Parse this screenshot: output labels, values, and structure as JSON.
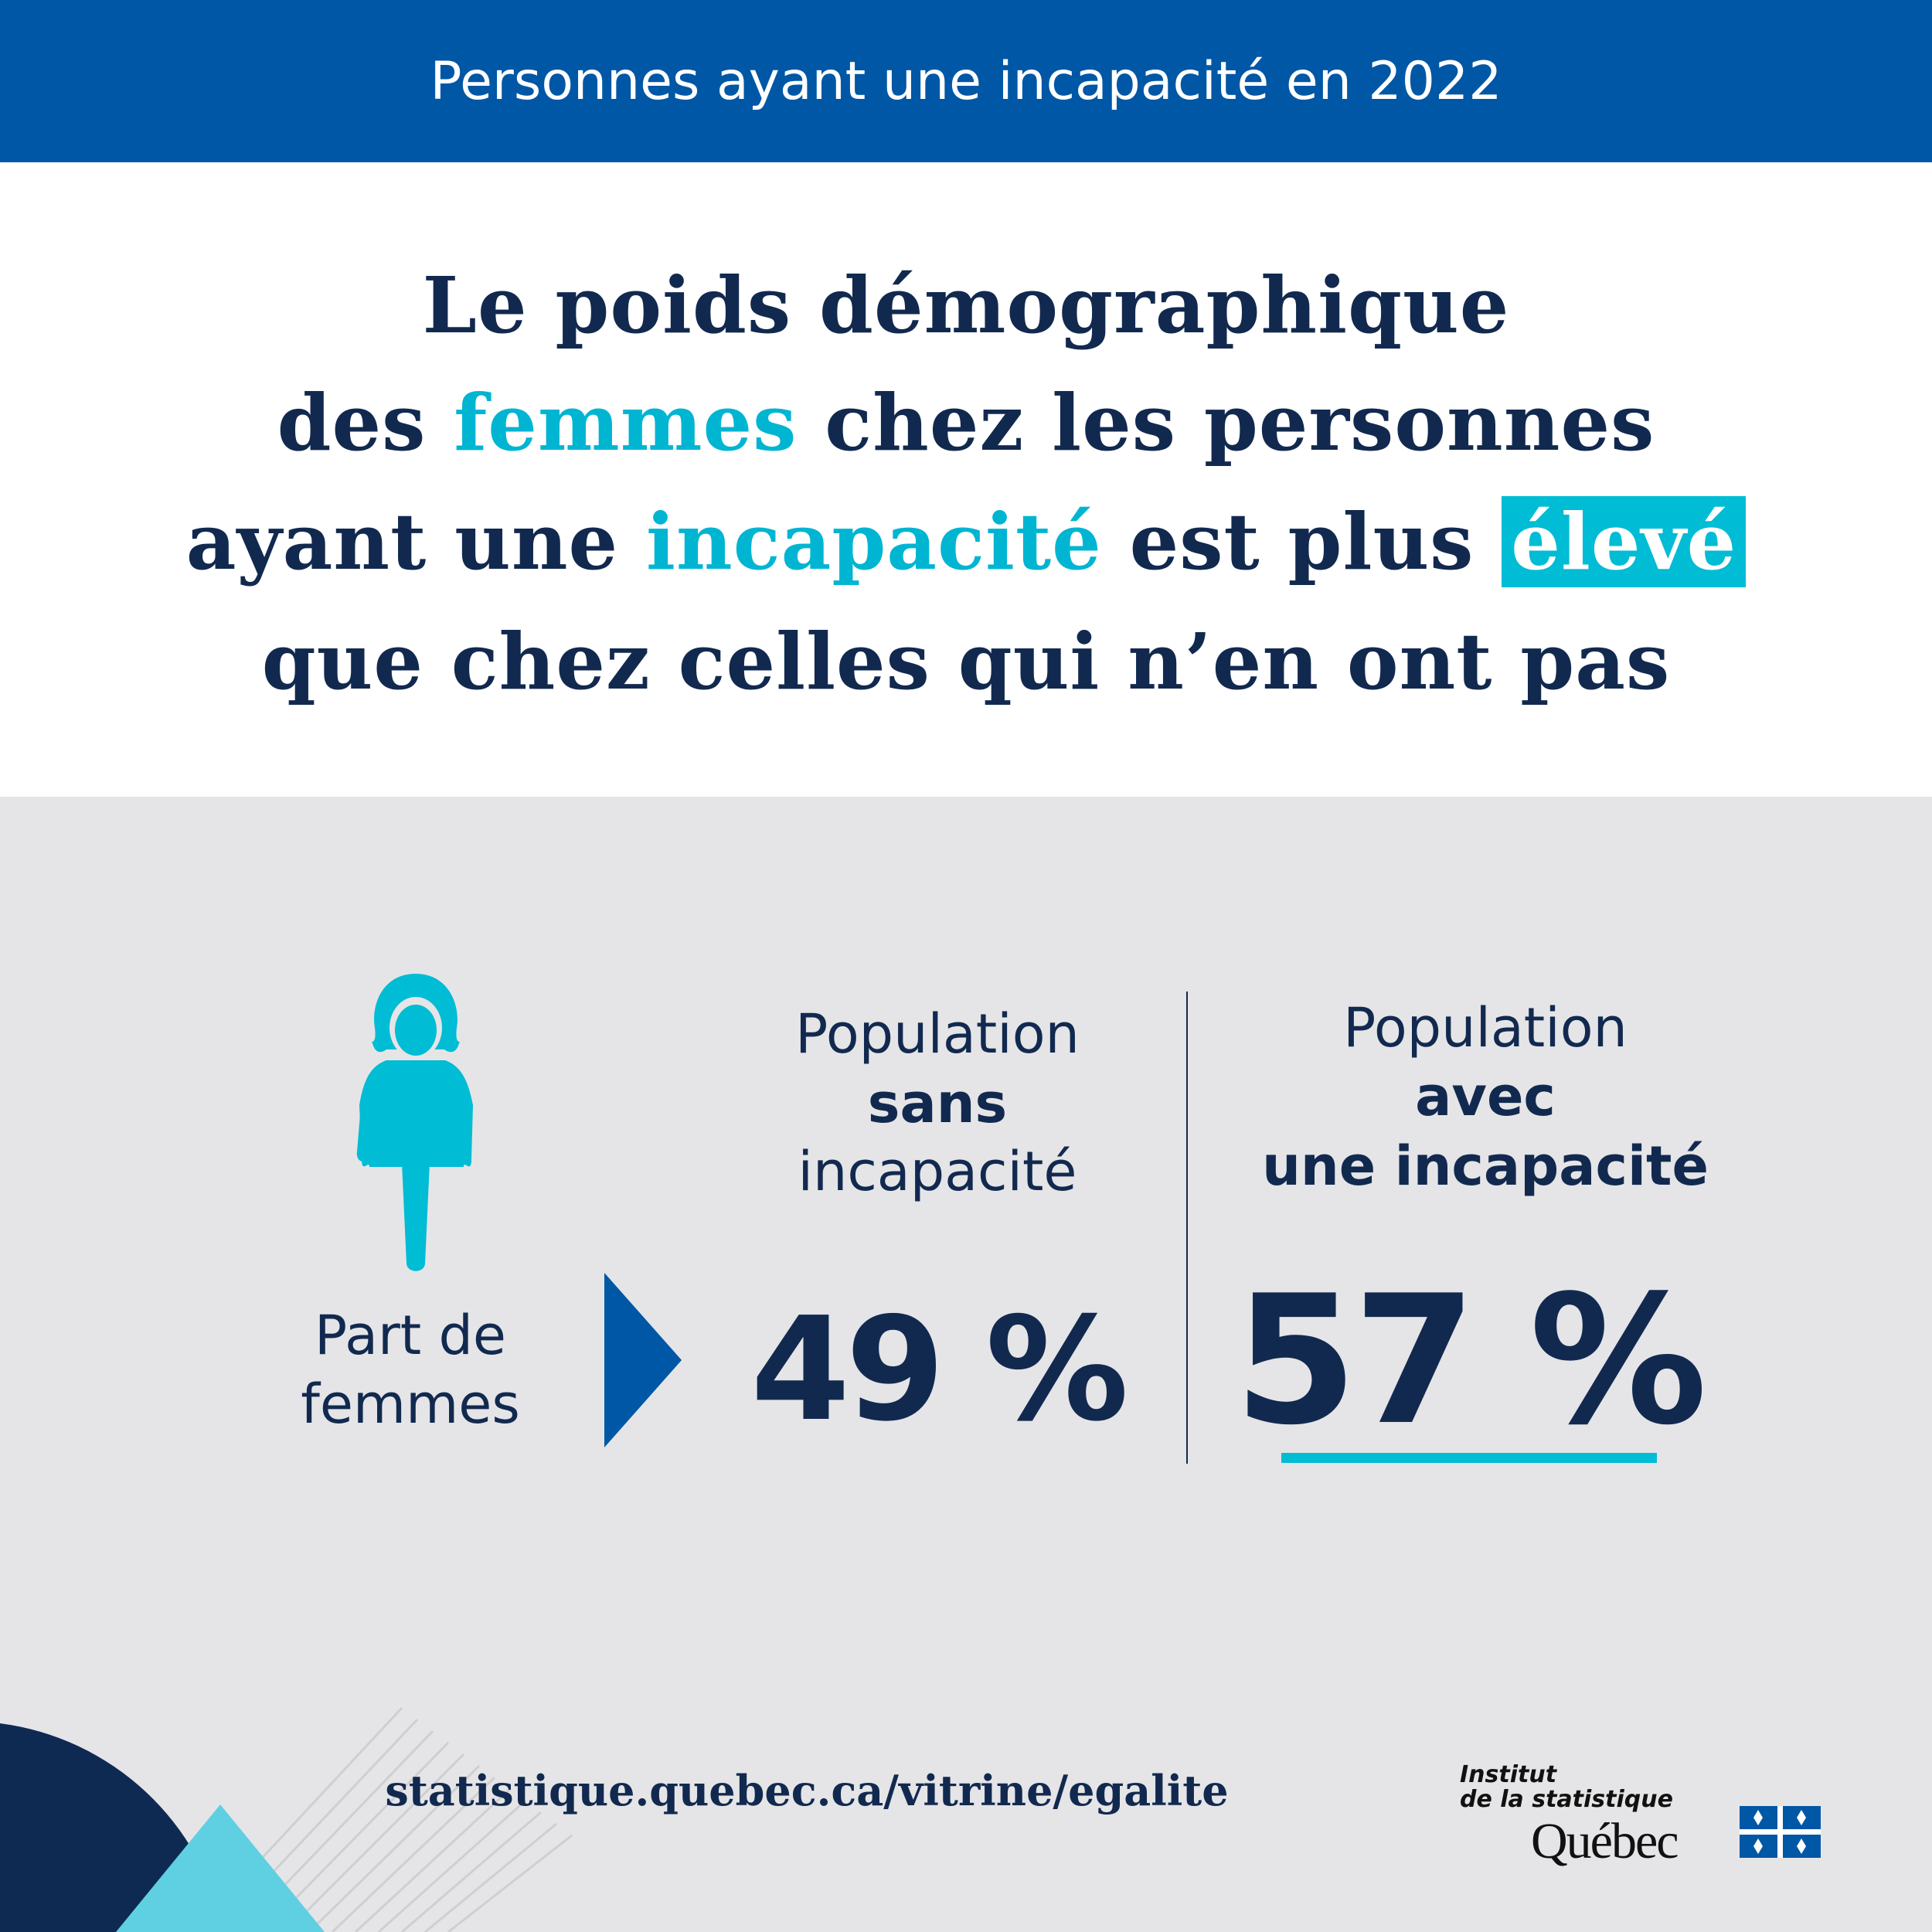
{
  "header": {
    "title": "Personnes ayant une incapacité en 2022"
  },
  "headline": {
    "lines": [
      [
        "Le poids démographique"
      ],
      [
        "des ",
        "femmes",
        " chez les personnes"
      ],
      [
        "ayant une ",
        "incapacité",
        " est plus ",
        "élevé"
      ],
      [
        "que chez celles qui n’en ont pas"
      ]
    ]
  },
  "stats": {
    "label_lines": [
      "Part de",
      "femmes"
    ],
    "columns": [
      {
        "heading_lines": [
          "Population",
          "sans",
          "incapacité"
        ],
        "value": "49 %"
      },
      {
        "heading_lines": [
          "Population",
          "avec",
          "une incapacité"
        ],
        "value": "57 %"
      }
    ]
  },
  "footer": {
    "url": "statistique.quebec.ca/vitrine/egalite",
    "logo_lines": [
      "Institut",
      "de la statistique",
      "Québec"
    ]
  }
}
